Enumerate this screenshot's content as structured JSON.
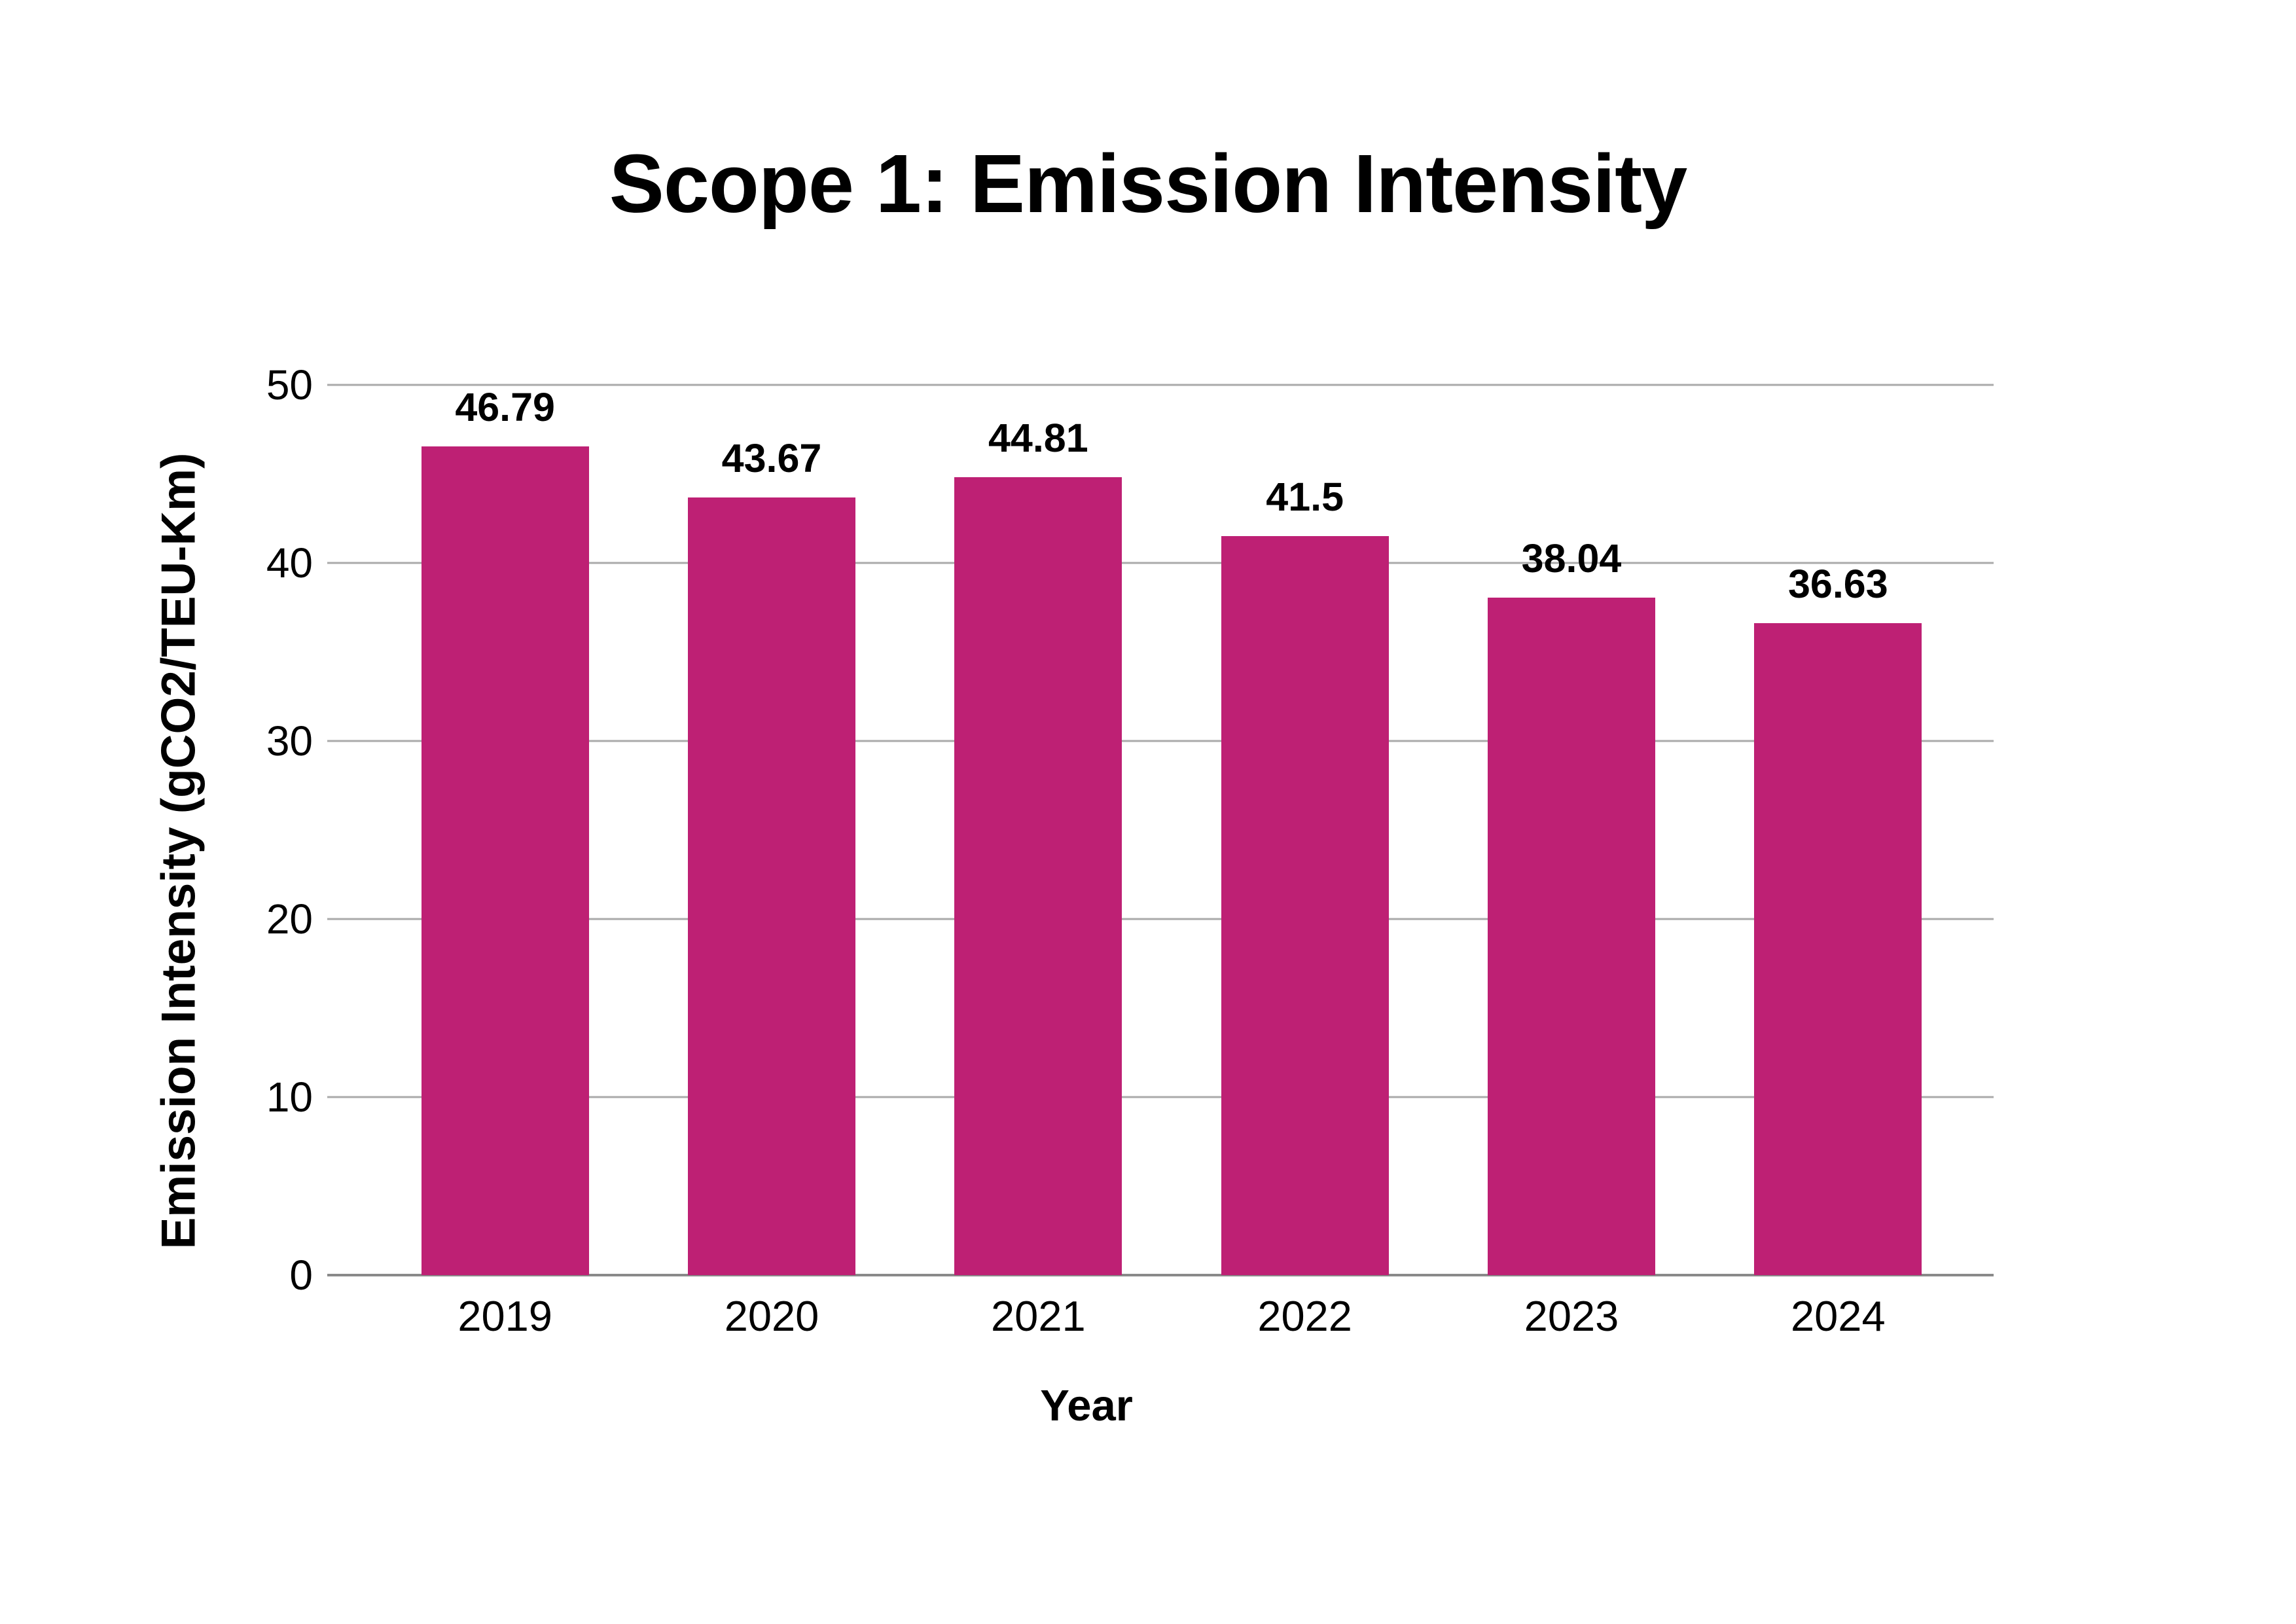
{
  "title": "Scope 1: Emission Intensity",
  "chart_data": {
    "type": "bar",
    "title": "Scope 1: Emission Intensity",
    "categories": [
      "2019",
      "2020",
      "2021",
      "2022",
      "2023",
      "2024"
    ],
    "values": [
      46.79,
      43.67,
      44.81,
      41.5,
      38.04,
      36.63
    ],
    "value_labels": [
      "46.79",
      "43.67",
      "44.81",
      "41.5",
      "38.04",
      "36.63"
    ],
    "xlabel": "Year",
    "ylabel": "Emission Intensity (gCO2/TEU-Km)",
    "ylim": [
      0,
      50
    ],
    "yticks": [
      "50",
      "40",
      "30",
      "20",
      "10",
      "0"
    ],
    "grid": "horizontal-only",
    "legend_position": "none",
    "bar_color": "#be2074"
  },
  "colors": {
    "bar": "#be2074",
    "gridline": "#aaaaaa",
    "axis_line": "#8a8a8a",
    "text": "#000000",
    "background": "#ffffff"
  }
}
